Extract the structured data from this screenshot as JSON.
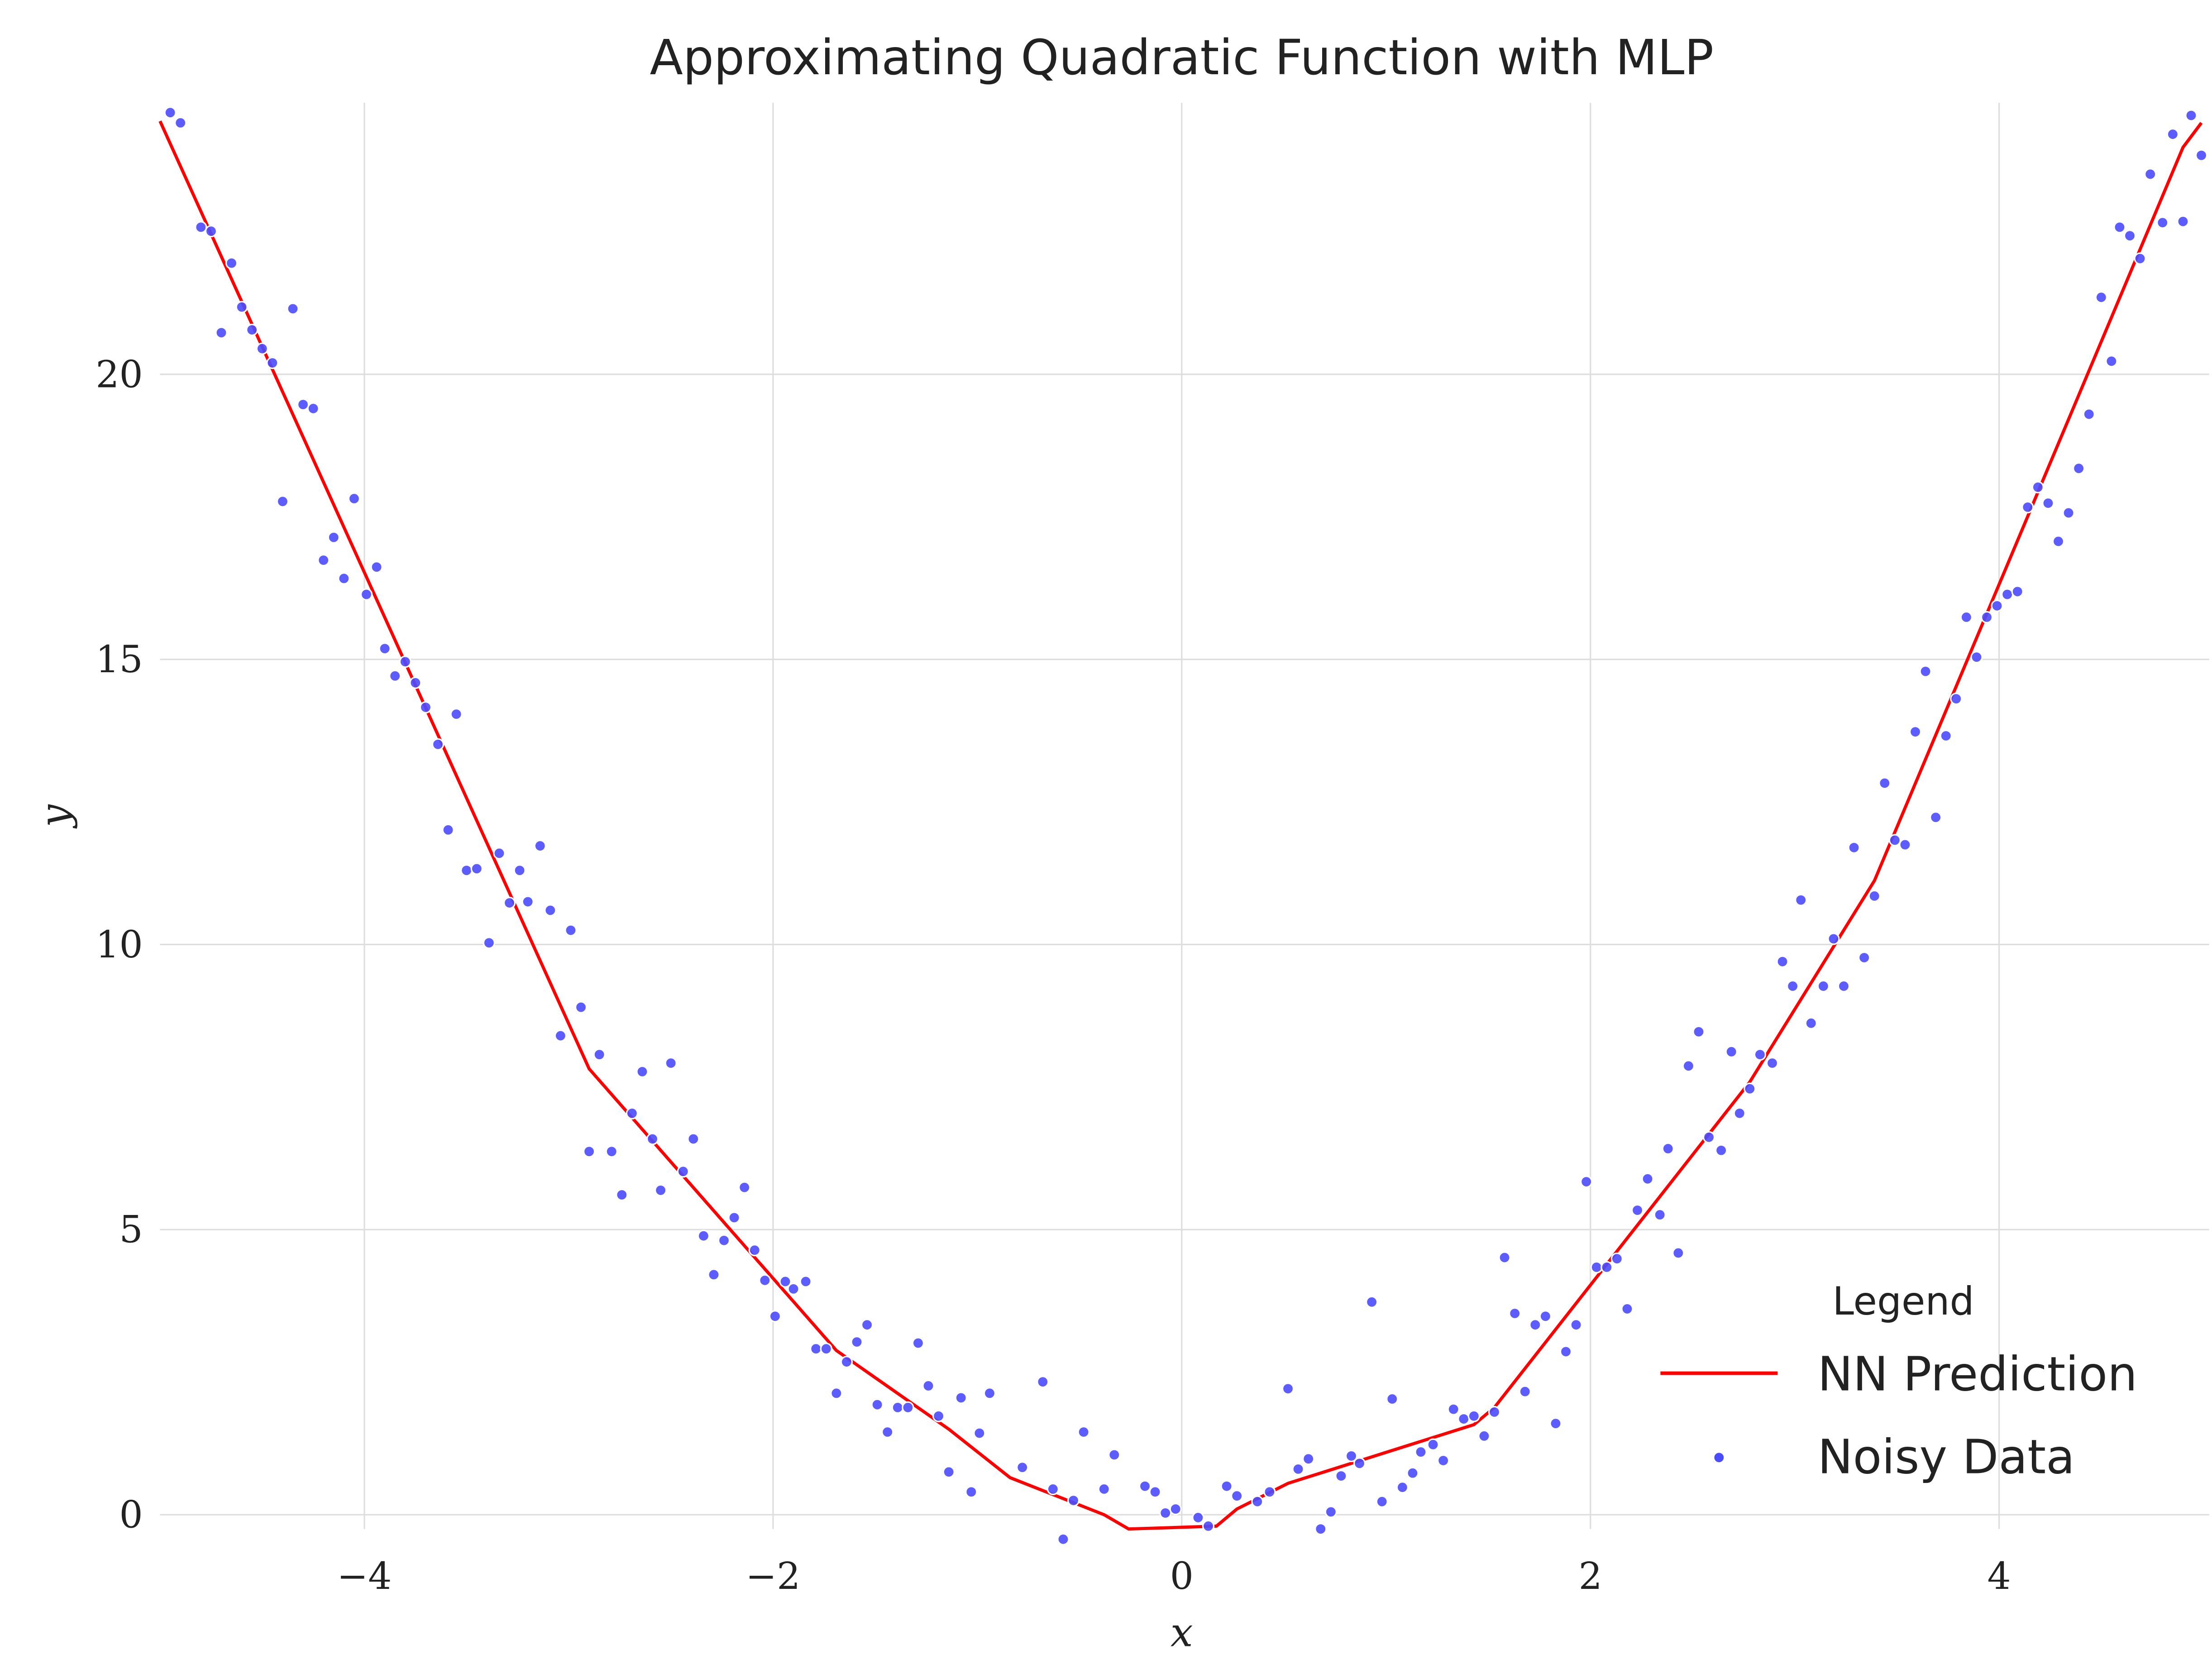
{
  "chart_data": {
    "type": "line",
    "title": "Approximating Quadratic Function with MLP",
    "xlabel": "x",
    "ylabel": "y",
    "xlim": [
      -5,
      5
    ],
    "ylim": [
      -0.25,
      24.76
    ],
    "xticks": [
      -4,
      -2,
      0,
      2,
      4
    ],
    "xtick_labels": [
      "−4",
      "−2",
      "0",
      "2",
      "4"
    ],
    "yticks": [
      0,
      5,
      10,
      15,
      20
    ],
    "ytick_labels": [
      "0",
      "5",
      "10",
      "15",
      "20"
    ],
    "grid": true,
    "legend": {
      "title": "Legend",
      "placement": "bottom-right"
    },
    "series": [
      {
        "name": "NN Prediction",
        "kind": "line",
        "color": "#ff0000",
        "x": [
          -5.0,
          -2.9,
          -1.69,
          -1.14,
          -0.84,
          -0.38,
          -0.26,
          -0.08,
          0.17,
          0.27,
          0.52,
          1.43,
          1.53,
          2.78,
          3.39,
          4.9,
          4.99
        ],
        "y": [
          24.44,
          7.82,
          2.88,
          1.5,
          0.65,
          0.0,
          -0.25,
          -0.23,
          -0.2,
          0.1,
          0.55,
          1.58,
          1.88,
          7.59,
          11.12,
          23.98,
          24.41
        ]
      },
      {
        "name": "Noisy Data",
        "kind": "scatter",
        "color": "#4b4bff",
        "x": [
          -4.95,
          -4.9,
          -4.8,
          -4.75,
          -4.7,
          -4.65,
          -4.6,
          -4.55,
          -4.5,
          -4.45,
          -4.4,
          -4.35,
          -4.3,
          -4.25,
          -4.2,
          -4.15,
          -4.1,
          -4.05,
          -3.99,
          -3.94,
          -3.9,
          -3.85,
          -3.8,
          -3.75,
          -3.7,
          -3.64,
          -3.59,
          -3.55,
          -3.5,
          -3.45,
          -3.39,
          -3.34,
          -3.29,
          -3.24,
          -3.2,
          -3.14,
          -3.09,
          -3.04,
          -2.99,
          -2.94,
          -2.9,
          -2.85,
          -2.79,
          -2.74,
          -2.69,
          -2.64,
          -2.59,
          -2.55,
          -2.5,
          -2.44,
          -2.39,
          -2.34,
          -2.29,
          -2.24,
          -2.19,
          -2.14,
          -2.09,
          -2.04,
          -1.99,
          -1.94,
          -1.9,
          -1.84,
          -1.79,
          -1.74,
          -1.69,
          -1.64,
          -1.59,
          -1.54,
          -1.49,
          -1.44,
          -1.39,
          -1.34,
          -1.29,
          -1.24,
          -1.19,
          -1.14,
          -1.08,
          -1.03,
          -0.99,
          -0.94,
          -0.78,
          -0.68,
          -0.63,
          -0.58,
          -0.53,
          -0.48,
          -0.38,
          -0.33,
          -0.18,
          -0.13,
          -0.08,
          -0.03,
          0.08,
          0.13,
          0.22,
          0.27,
          0.37,
          0.43,
          0.52,
          0.57,
          0.62,
          0.68,
          0.73,
          0.78,
          0.83,
          0.87,
          0.93,
          0.98,
          1.03,
          1.08,
          1.13,
          1.17,
          1.23,
          1.28,
          1.33,
          1.38,
          1.43,
          1.48,
          1.53,
          1.58,
          1.63,
          1.68,
          1.73,
          1.78,
          1.83,
          1.88,
          1.93,
          1.98,
          2.03,
          2.08,
          2.13,
          2.18,
          2.23,
          2.28,
          2.34,
          2.38,
          2.43,
          2.48,
          2.53,
          2.58,
          2.64,
          2.69,
          2.73,
          2.78,
          2.83,
          2.89,
          2.94,
          2.99,
          3.03,
          3.08,
          3.14,
          3.19,
          3.24,
          3.29,
          3.34,
          3.39,
          3.44,
          3.49,
          3.54,
          3.59,
          3.64,
          3.69,
          3.74,
          3.79,
          3.84,
          3.89,
          3.94,
          3.99,
          4.04,
          4.09,
          4.14,
          4.19,
          4.24,
          4.29,
          4.34,
          4.39,
          4.44,
          4.5,
          4.55,
          4.59,
          4.64,
          4.69,
          4.74,
          4.8,
          4.85,
          4.9,
          4.94,
          4.99
        ],
        "y": [
          24.59,
          24.41,
          22.58,
          22.51,
          20.73,
          21.95,
          21.18,
          20.78,
          20.45,
          20.2,
          17.77,
          21.15,
          19.47,
          19.4,
          16.74,
          17.14,
          16.42,
          17.82,
          16.14,
          16.62,
          15.19,
          14.71,
          14.96,
          14.59,
          14.16,
          13.51,
          12.01,
          14.04,
          11.3,
          11.33,
          10.03,
          11.6,
          10.73,
          11.3,
          10.75,
          11.73,
          10.6,
          8.4,
          10.25,
          8.9,
          6.37,
          8.07,
          6.37,
          5.61,
          7.04,
          7.77,
          6.59,
          5.69,
          7.92,
          6.02,
          6.59,
          4.89,
          4.21,
          4.81,
          5.21,
          5.74,
          4.64,
          4.11,
          3.48,
          4.09,
          3.96,
          4.09,
          2.91,
          2.91,
          2.13,
          2.68,
          3.03,
          3.33,
          1.93,
          1.45,
          1.88,
          1.88,
          3.01,
          2.26,
          1.73,
          0.75,
          2.05,
          0.4,
          1.43,
          2.13,
          0.83,
          2.33,
          0.45,
          -0.43,
          0.25,
          1.45,
          0.45,
          1.05,
          0.5,
          0.4,
          0.03,
          0.1,
          -0.05,
          -0.2,
          0.5,
          0.33,
          0.23,
          0.4,
          2.21,
          0.8,
          0.98,
          -0.25,
          0.05,
          0.68,
          1.03,
          0.9,
          3.73,
          0.23,
          2.03,
          0.48,
          0.73,
          1.1,
          1.23,
          0.95,
          1.85,
          1.68,
          1.73,
          1.38,
          1.8,
          4.51,
          3.53,
          2.16,
          3.33,
          3.48,
          1.6,
          2.86,
          3.33,
          5.84,
          4.34,
          4.34,
          4.49,
          3.61,
          5.34,
          5.89,
          5.26,
          6.42,
          4.59,
          7.87,
          8.47,
          6.62,
          6.39,
          8.12,
          7.04,
          7.47,
          8.07,
          7.92,
          9.7,
          9.27,
          10.78,
          8.62,
          9.27,
          10.1,
          9.27,
          11.7,
          9.77,
          10.85,
          12.83,
          11.83,
          11.75,
          13.73,
          14.79,
          12.23,
          13.66,
          14.31,
          15.74,
          15.04,
          15.74,
          15.94,
          16.14,
          16.19,
          17.67,
          18.02,
          17.74,
          17.07,
          17.57,
          18.35,
          19.3,
          21.35,
          20.23,
          22.58,
          22.43,
          22.03,
          23.51,
          22.66,
          24.21,
          22.68,
          24.54,
          23.84
        ]
      }
    ]
  }
}
